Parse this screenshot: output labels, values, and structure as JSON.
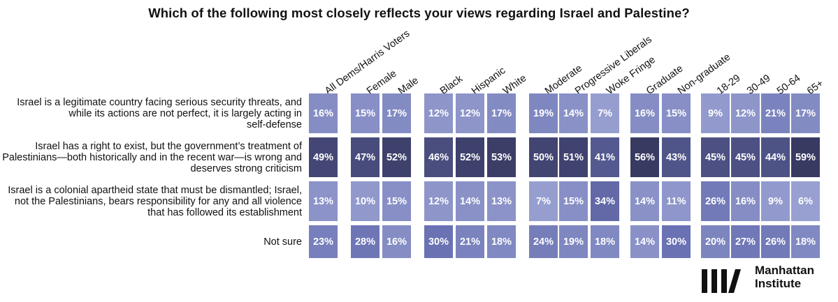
{
  "chart_data": {
    "type": "heatmap",
    "title": "Which of the following most closely reflects your views regarding Israel and Palestine?",
    "columns": [
      {
        "label": "All Dems/Harris Voters",
        "group": "all"
      },
      {
        "label": "Female",
        "group": "sex"
      },
      {
        "label": "Male",
        "group": "sex"
      },
      {
        "label": "Black",
        "group": "race"
      },
      {
        "label": "Hispanic",
        "group": "race"
      },
      {
        "label": "White",
        "group": "race"
      },
      {
        "label": "Moderate",
        "group": "ideology"
      },
      {
        "label": "Progressive Liberals",
        "group": "ideology"
      },
      {
        "label": "Woke Fringe",
        "group": "ideology"
      },
      {
        "label": "Graduate",
        "group": "education"
      },
      {
        "label": "Non-graduate",
        "group": "education"
      },
      {
        "label": "18-29",
        "group": "age"
      },
      {
        "label": "30-49",
        "group": "age"
      },
      {
        "label": "50-64",
        "group": "age"
      },
      {
        "label": "65+",
        "group": "age"
      }
    ],
    "rows": [
      {
        "label_lines": [
          "Israel is a legitimate country facing serious security threats, and",
          "while its actions are not perfect, it is largely acting in",
          "self-defense"
        ],
        "values": [
          16,
          15,
          17,
          12,
          12,
          17,
          19,
          14,
          7,
          16,
          15,
          9,
          12,
          21,
          17
        ]
      },
      {
        "label_lines": [
          "Israel has a right to exist, but the government’s treatment of",
          "Palestinians—both historically and in the recent war—is wrong and",
          "deserves strong criticism"
        ],
        "values": [
          49,
          47,
          52,
          46,
          52,
          53,
          50,
          51,
          41,
          56,
          43,
          45,
          45,
          44,
          59
        ]
      },
      {
        "label_lines": [
          "Israel is a colonial apartheid state that must be dismantled; Israel,",
          "not the Palestinians, bears responsibility for any and all violence",
          "that has followed its establishment"
        ],
        "values": [
          13,
          10,
          15,
          12,
          14,
          13,
          7,
          15,
          34,
          14,
          11,
          26,
          16,
          9,
          6
        ]
      },
      {
        "label_lines": [
          "Not sure"
        ],
        "values": [
          23,
          28,
          16,
          30,
          21,
          18,
          24,
          19,
          18,
          14,
          30,
          20,
          27,
          26,
          18
        ]
      }
    ],
    "value_suffix": "%",
    "color_scale": {
      "low": "#9aa2d2",
      "mid": "#6a72b3",
      "high": "#383a62"
    },
    "legend": "none",
    "grid": false
  },
  "logo": {
    "line1": "Manhattan",
    "line2": "Institute",
    "color": "#111111"
  }
}
